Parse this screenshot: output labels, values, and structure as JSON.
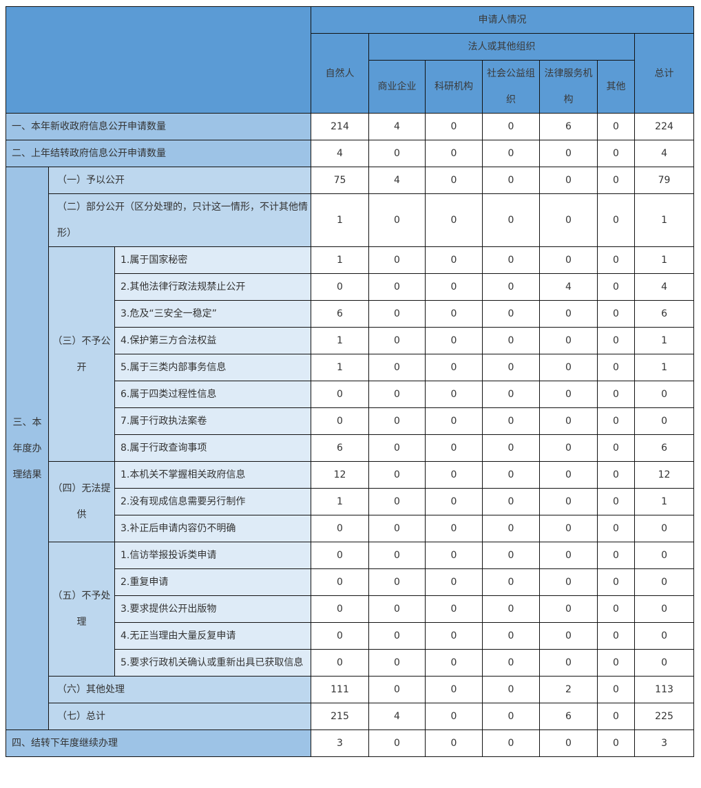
{
  "header": {
    "applicant": "申请人情况",
    "natural": "自然人",
    "legal": "法人或其他组织",
    "legal_sub": [
      "商业企业",
      "科研机构",
      "社会公益组织",
      "法律服务机构",
      "其他"
    ],
    "total": "总计"
  },
  "colors": {
    "header": "#5b9bd5",
    "level1": "#9dc3e6",
    "level2": "#bdd7ee",
    "level3": "#deebf7"
  },
  "section1": {
    "label": "一、本年新收政府信息公开申请数量",
    "values": [
      214,
      4,
      0,
      0,
      6,
      0,
      224
    ]
  },
  "section2": {
    "label": "二、上年结转政府信息公开申请数量",
    "values": [
      4,
      0,
      0,
      0,
      0,
      0,
      4
    ]
  },
  "section3": {
    "label": "三、本年度办理结果",
    "groups": [
      {
        "label": "（一）予以公开",
        "values": [
          75,
          4,
          0,
          0,
          0,
          0,
          79
        ]
      },
      {
        "label": "（二）部分公开（区分处理的，只计这一情形，不计其他情形）",
        "values": [
          1,
          0,
          0,
          0,
          0,
          0,
          1
        ]
      },
      {
        "label": "（三）不予公开",
        "items": [
          {
            "label": "1.属于国家秘密",
            "values": [
              1,
              0,
              0,
              0,
              0,
              0,
              1
            ]
          },
          {
            "label": "2.其他法律行政法规禁止公开",
            "values": [
              0,
              0,
              0,
              0,
              4,
              0,
              4
            ]
          },
          {
            "label": "3.危及“三安全一稳定”",
            "values": [
              6,
              0,
              0,
              0,
              0,
              0,
              6
            ]
          },
          {
            "label": "4.保护第三方合法权益",
            "values": [
              1,
              0,
              0,
              0,
              0,
              0,
              1
            ]
          },
          {
            "label": "5.属于三类内部事务信息",
            "values": [
              1,
              0,
              0,
              0,
              0,
              0,
              1
            ]
          },
          {
            "label": "6.属于四类过程性信息",
            "values": [
              0,
              0,
              0,
              0,
              0,
              0,
              0
            ]
          },
          {
            "label": "7.属于行政执法案卷",
            "values": [
              0,
              0,
              0,
              0,
              0,
              0,
              0
            ]
          },
          {
            "label": "8.属于行政查询事项",
            "values": [
              6,
              0,
              0,
              0,
              0,
              0,
              6
            ]
          }
        ]
      },
      {
        "label": "（四）无法提供",
        "items": [
          {
            "label": "1.本机关不掌握相关政府信息",
            "values": [
              12,
              0,
              0,
              0,
              0,
              0,
              12
            ]
          },
          {
            "label": "2.没有现成信息需要另行制作",
            "values": [
              1,
              0,
              0,
              0,
              0,
              0,
              1
            ]
          },
          {
            "label": "3.补正后申请内容仍不明确",
            "values": [
              0,
              0,
              0,
              0,
              0,
              0,
              0
            ]
          }
        ]
      },
      {
        "label": "（五）不予处理",
        "items": [
          {
            "label": "1.信访举报投诉类申请",
            "values": [
              0,
              0,
              0,
              0,
              0,
              0,
              0
            ]
          },
          {
            "label": "2.重复申请",
            "values": [
              0,
              0,
              0,
              0,
              0,
              0,
              0
            ]
          },
          {
            "label": "3.要求提供公开出版物",
            "values": [
              0,
              0,
              0,
              0,
              0,
              0,
              0
            ]
          },
          {
            "label": "4.无正当理由大量反复申请",
            "values": [
              0,
              0,
              0,
              0,
              0,
              0,
              0
            ]
          },
          {
            "label": "5.要求行政机关确认或重新出具已获取信息",
            "values": [
              0,
              0,
              0,
              0,
              0,
              0,
              0
            ]
          }
        ]
      },
      {
        "label": "（六）其他处理",
        "values": [
          111,
          0,
          0,
          0,
          2,
          0,
          113
        ]
      },
      {
        "label": "（七）总计",
        "values": [
          215,
          4,
          0,
          0,
          6,
          0,
          225
        ]
      }
    ]
  },
  "section4": {
    "label": "四、结转下年度继续办理",
    "values": [
      3,
      0,
      0,
      0,
      0,
      0,
      3
    ]
  }
}
